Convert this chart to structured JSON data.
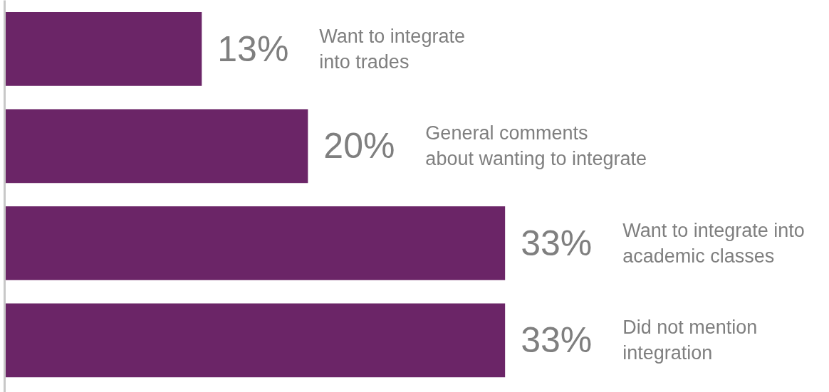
{
  "chart_data": {
    "type": "bar",
    "orientation": "horizontal",
    "categories": [
      "Want to integrate\ninto trades",
      "General comments\nabout wanting to integrate",
      "Want to integrate into\nacademic classes",
      "Did not mention\nintegration"
    ],
    "values": [
      13,
      20,
      33,
      33
    ],
    "value_labels": [
      "13%",
      "20%",
      "33%",
      "33%"
    ],
    "color": "#6b2567",
    "tick_labels": false,
    "grid": false
  }
}
